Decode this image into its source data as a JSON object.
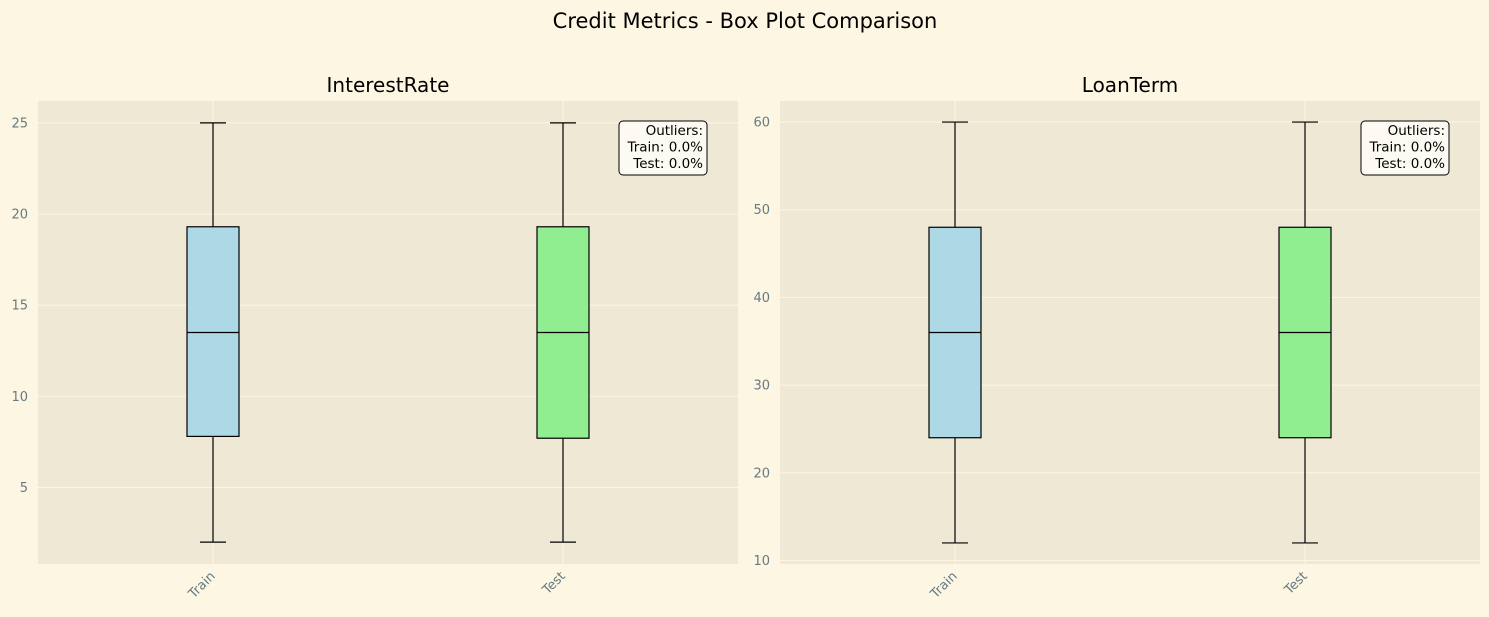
{
  "figure": {
    "title": "Credit Metrics - Box Plot Comparison",
    "background": "#fdf6e3",
    "axes_background": "#eee8d5",
    "grid_color": "#fdf6e3",
    "tick_label_color": "#657b83"
  },
  "chart_data": [
    {
      "type": "box",
      "title": "InterestRate",
      "xlabel": "",
      "ylabel": "",
      "categories": [
        "Train",
        "Test"
      ],
      "ylim": [
        0.8,
        26.2
      ],
      "yticks": [
        5,
        10,
        15,
        20,
        25
      ],
      "grid": true,
      "boxes": [
        {
          "category": "Train",
          "whisker_low": 2,
          "q1": 7.8,
          "median": 13.5,
          "q3": 19.3,
          "whisker_high": 25,
          "color": "#add8e6"
        },
        {
          "category": "Test",
          "whisker_low": 2,
          "q1": 7.7,
          "median": 13.5,
          "q3": 19.3,
          "whisker_high": 25,
          "color": "#90ee90"
        }
      ],
      "annotation": {
        "lines": [
          "Outliers:",
          "Train: 0.0%",
          "Test: 0.0%"
        ],
        "placement": "top-right"
      }
    },
    {
      "type": "box",
      "title": "LoanTerm",
      "xlabel": "",
      "ylabel": "",
      "categories": [
        "Train",
        "Test"
      ],
      "ylim": [
        9.6,
        62.4
      ],
      "yticks": [
        10,
        20,
        30,
        40,
        50,
        60
      ],
      "grid": true,
      "boxes": [
        {
          "category": "Train",
          "whisker_low": 12,
          "q1": 24,
          "median": 36,
          "q3": 48,
          "whisker_high": 60,
          "color": "#add8e6"
        },
        {
          "category": "Test",
          "whisker_low": 12,
          "q1": 24,
          "median": 36,
          "q3": 48,
          "whisker_high": 60,
          "color": "#90ee90"
        }
      ],
      "annotation": {
        "lines": [
          "Outliers:",
          "Train: 0.0%",
          "Test: 0.0%"
        ],
        "placement": "top-right"
      }
    }
  ]
}
